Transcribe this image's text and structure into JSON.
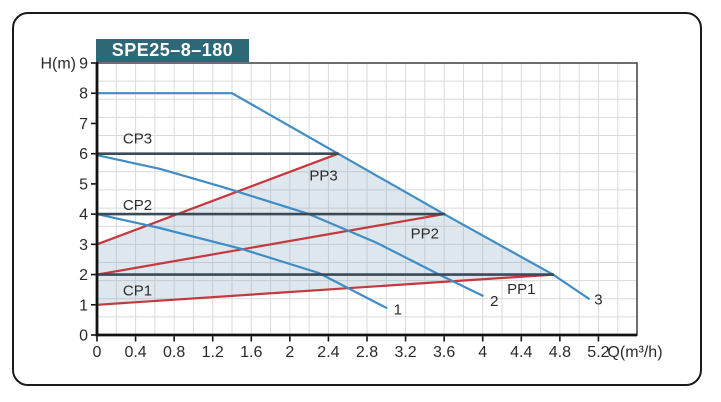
{
  "style": {
    "blue": "#3f8dc6",
    "red": "#c5383d",
    "navy": "#3c4a57",
    "grid": "#dadada",
    "shade": "rgba(120,160,185,0.25)",
    "title_bg": "#2e6876",
    "title_text": "#ffffff",
    "frame_border": "#1a1a1a",
    "plot_border": "#4a4a4a",
    "axis": "#111111",
    "tick_text": "#2a2a2a",
    "label_text": "#2b2b2b"
  },
  "chart_data": {
    "type": "line",
    "title": "SPE25–8–180",
    "xlabel": "Q(m³/h)",
    "ylabel": "H(m)",
    "xlim": [
      0,
      5.6
    ],
    "ylim": [
      0,
      9
    ],
    "grid": {
      "x_step": 0.2,
      "y_step": 0.6,
      "on": true
    },
    "legend": "none",
    "x_ticks": [
      0,
      0.4,
      0.8,
      1.2,
      1.6,
      2,
      2.4,
      2.8,
      3.2,
      3.6,
      4,
      4.4,
      4.8,
      5.2
    ],
    "x_tick_labels": [
      "0",
      "0.4",
      "0.8",
      "1.2",
      "1.6",
      "2",
      "2.4",
      "2.8",
      "3.2",
      "3.6",
      "4",
      "4.4",
      "4.8",
      "5.2"
    ],
    "y_ticks": [
      0,
      1,
      2,
      3,
      4,
      5,
      6,
      7,
      8,
      9
    ],
    "y_tick_labels": [
      "0",
      "1",
      "2",
      "3",
      "4",
      "5",
      "6",
      "7",
      "8",
      "9"
    ],
    "series": [
      {
        "name": "PP3",
        "kind": "proportional-pressure-curve",
        "color": "red",
        "width": 2.2,
        "points": [
          [
            0,
            3
          ],
          [
            2.5,
            6
          ]
        ]
      },
      {
        "name": "PP2",
        "kind": "proportional-pressure-curve",
        "color": "red",
        "width": 2.2,
        "points": [
          [
            0,
            2
          ],
          [
            3.6,
            4
          ]
        ]
      },
      {
        "name": "PP1",
        "kind": "proportional-pressure-curve",
        "color": "red",
        "width": 2.2,
        "points": [
          [
            0,
            1
          ],
          [
            4.73,
            2
          ]
        ]
      },
      {
        "name": "3",
        "kind": "speed-curve",
        "color": "blue",
        "width": 2.2,
        "points": [
          [
            0,
            8
          ],
          [
            1.4,
            8
          ],
          [
            2.5,
            6
          ],
          [
            3.6,
            4
          ],
          [
            4.73,
            2
          ],
          [
            5.1,
            1.2
          ]
        ]
      },
      {
        "name": "2",
        "kind": "speed-curve",
        "color": "blue",
        "width": 2.2,
        "points": [
          [
            0,
            5.95
          ],
          [
            0.65,
            5.5
          ],
          [
            1.3,
            4.9
          ],
          [
            2.2,
            4.0
          ],
          [
            2.9,
            3.05
          ],
          [
            3.55,
            2.0
          ],
          [
            4.0,
            1.3
          ]
        ]
      },
      {
        "name": "1",
        "kind": "speed-curve",
        "color": "blue",
        "width": 2.2,
        "points": [
          [
            0,
            4
          ],
          [
            0.65,
            3.54
          ],
          [
            1.5,
            2.85
          ],
          [
            2.3,
            2.05
          ],
          [
            3.0,
            0.9
          ]
        ]
      },
      {
        "name": "CP3",
        "kind": "constant-pressure-curve",
        "color": "navy",
        "width": 2.6,
        "points": [
          [
            0,
            6
          ],
          [
            2.5,
            6
          ]
        ]
      },
      {
        "name": "CP2",
        "kind": "constant-pressure-curve",
        "color": "navy",
        "width": 2.6,
        "points": [
          [
            0,
            4
          ],
          [
            3.6,
            4
          ]
        ]
      },
      {
        "name": "CP1",
        "kind": "constant-pressure-curve",
        "color": "navy",
        "width": 2.6,
        "points": [
          [
            0,
            2
          ],
          [
            4.73,
            2
          ]
        ]
      }
    ],
    "shaded_region": {
      "name": "operating-range",
      "points": [
        [
          0,
          1
        ],
        [
          0,
          3
        ],
        [
          2.5,
          6
        ],
        [
          3.6,
          4
        ],
        [
          4.73,
          2
        ]
      ]
    },
    "curve_labels": [
      {
        "text": "CP3",
        "q": 0.42,
        "h": 6.5
      },
      {
        "text": "CP2",
        "q": 0.42,
        "h": 4.3
      },
      {
        "text": "CP1",
        "q": 0.42,
        "h": 1.48
      },
      {
        "text": "PP3",
        "q": 2.35,
        "h": 5.28
      },
      {
        "text": "PP2",
        "q": 3.4,
        "h": 3.36
      },
      {
        "text": "PP1",
        "q": 4.4,
        "h": 1.52
      },
      {
        "text": "1",
        "q": 3.12,
        "h": 0.85
      },
      {
        "text": "2",
        "q": 4.12,
        "h": 1.13
      },
      {
        "text": "3",
        "q": 5.2,
        "h": 1.18
      }
    ]
  }
}
